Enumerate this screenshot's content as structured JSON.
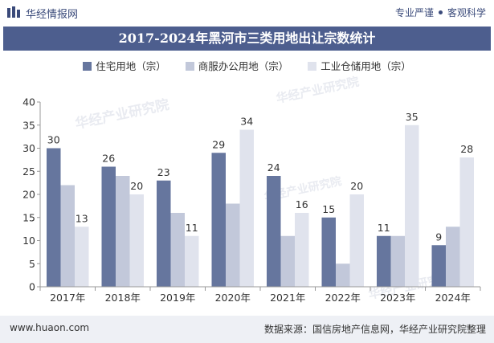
{
  "header": {
    "brand": "华经情报网",
    "slogan_left": "专业严谨",
    "slogan_right": "客观科学"
  },
  "title": "2017-2024年黑河市三类用地出让宗数统计",
  "footer": {
    "url": "www.huaon.com",
    "source": "数据来源：国信房地产信息网，华经产业研究院整理"
  },
  "chart_data": {
    "type": "bar",
    "title": "2017-2024年黑河市三类用地出让宗数统计",
    "xlabel": "",
    "ylabel": "",
    "categories": [
      "2017年",
      "2018年",
      "2019年",
      "2020年",
      "2021年",
      "2022年",
      "2023年",
      "2024年"
    ],
    "series": [
      {
        "name": "住宅用地（宗）",
        "color": "#66769e",
        "values": [
          30,
          26,
          23,
          29,
          24,
          15,
          11,
          9
        ],
        "labeled": true
      },
      {
        "name": "商服办公用地（宗）",
        "color": "#c2c8da",
        "values": [
          22,
          24,
          16,
          18,
          11,
          5,
          11,
          13
        ],
        "labeled": false
      },
      {
        "name": "工业仓储用地（宗）",
        "color": "#e0e3ed",
        "values": [
          13,
          20,
          11,
          34,
          16,
          20,
          35,
          28
        ],
        "labeled": true
      }
    ],
    "ylim": [
      0,
      40
    ],
    "yticks": [
      0,
      5,
      10,
      15,
      20,
      25,
      30,
      35,
      40
    ],
    "grid": false,
    "legend": "top-center"
  }
}
